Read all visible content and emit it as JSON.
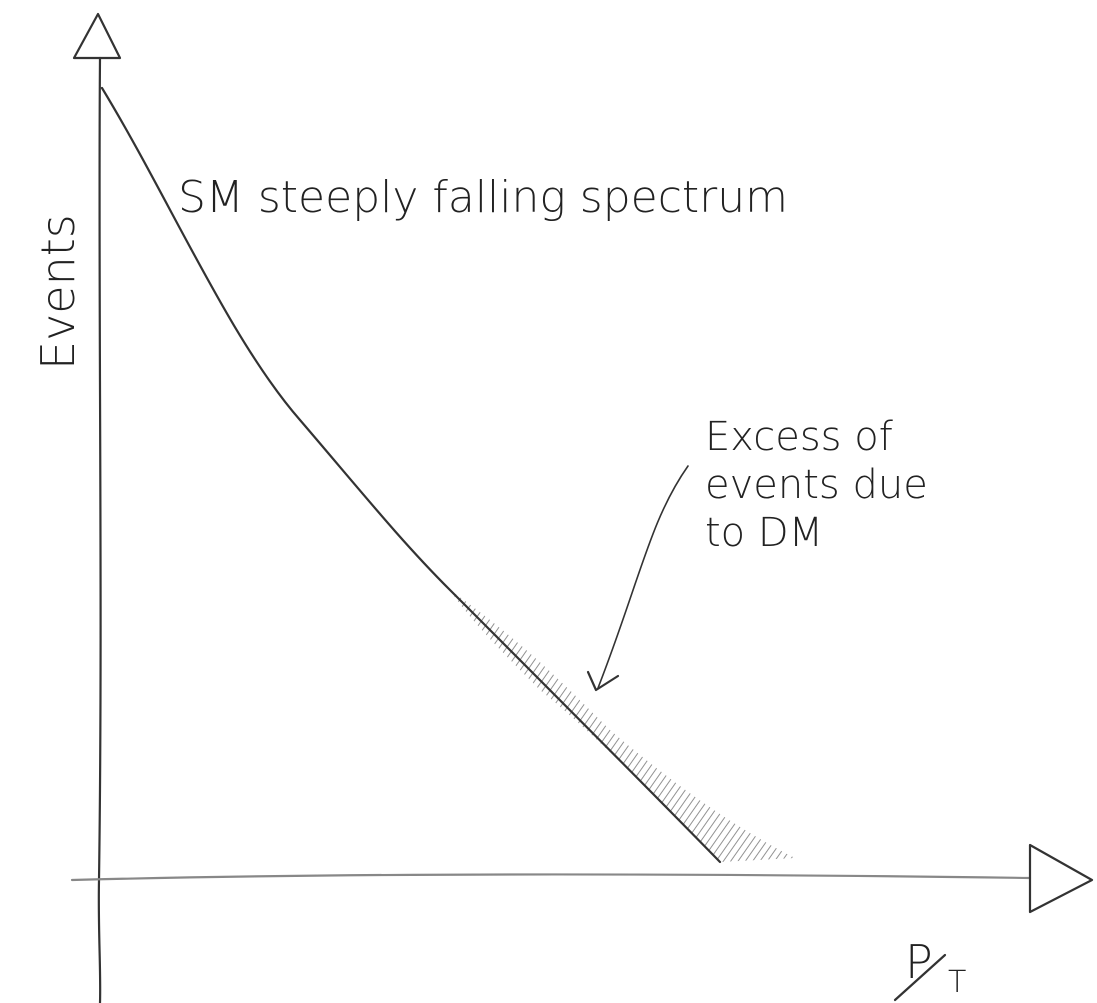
{
  "axes": {
    "y_label": "Events",
    "x_label": "P",
    "x_label_subscript": "T"
  },
  "annotations": {
    "spectrum": "SM steeply falling spectrum",
    "excess": [
      "Excess of",
      "events due",
      "to DM"
    ]
  }
}
